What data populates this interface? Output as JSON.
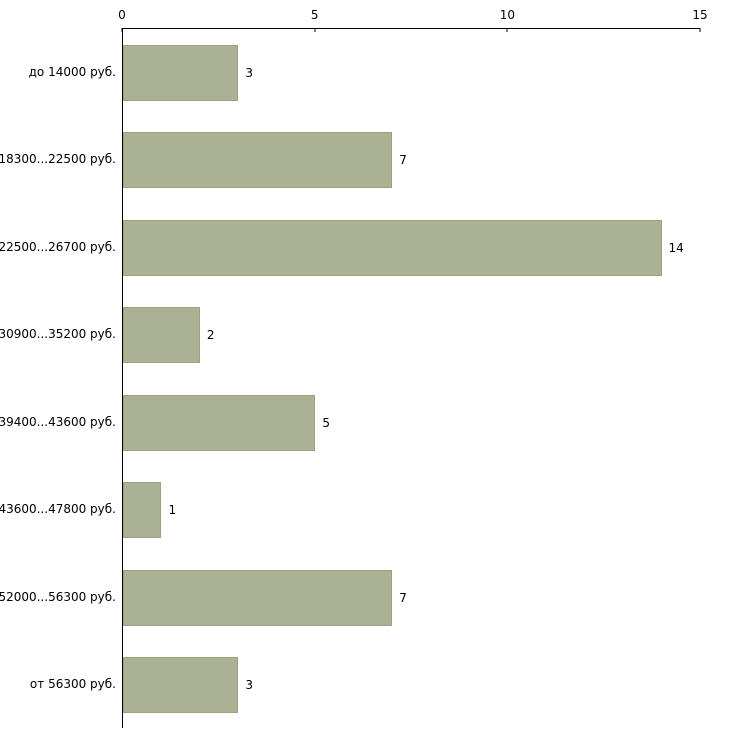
{
  "chart_data": {
    "type": "bar",
    "orientation": "horizontal",
    "title": "",
    "xlabel": "",
    "ylabel": "",
    "categories": [
      "до 14000 руб.",
      "18300...22500 руб.",
      "22500...26700 руб.",
      "30900...35200 руб.",
      "39400...43600 руб.",
      "43600...47800 руб.",
      "52000...56300 руб.",
      "от 56300 руб."
    ],
    "values": [
      3,
      7,
      14,
      2,
      5,
      1,
      7,
      3
    ],
    "value_labels": [
      "3",
      "7",
      "14",
      "2",
      "5",
      "1",
      "7",
      "3"
    ],
    "xlim": [
      0,
      15
    ],
    "xticks": [
      0,
      5,
      10,
      15
    ],
    "xtick_labels": [
      "0",
      "5",
      "10",
      "15"
    ],
    "grid": false,
    "legend": "none",
    "colors": {
      "bar_fill": "#abb294",
      "bar_border": "#9aa37d",
      "axis": "#000000",
      "text": "#000000",
      "background": "#ffffff"
    }
  }
}
